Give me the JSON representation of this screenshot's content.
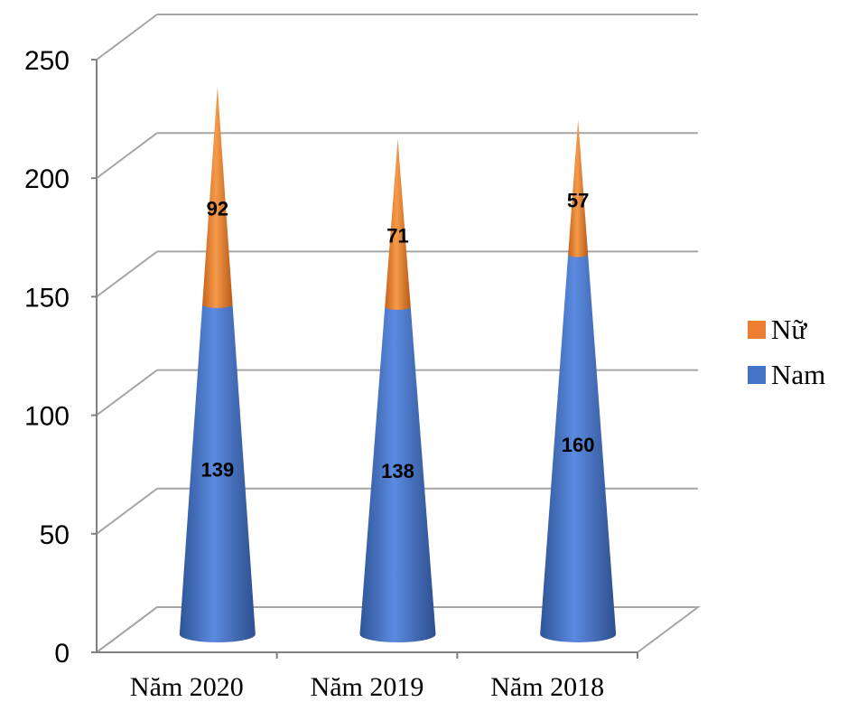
{
  "chart_data": {
    "type": "bar",
    "shape": "cone",
    "stacked": true,
    "categories": [
      "Năm 2020",
      "Năm 2019",
      "Năm 2018"
    ],
    "series": [
      {
        "name": "Nam",
        "values": [
          139,
          138,
          160
        ],
        "color": "#4472C4"
      },
      {
        "name": "Nữ",
        "values": [
          92,
          71,
          57
        ],
        "color": "#ED7D31"
      }
    ],
    "ylim": [
      0,
      250
    ],
    "yticks": [
      "0",
      "50",
      "100",
      "150",
      "200",
      "250"
    ],
    "grid": true,
    "legend_position": "right",
    "legend": [
      "Nữ",
      "Nam"
    ]
  }
}
